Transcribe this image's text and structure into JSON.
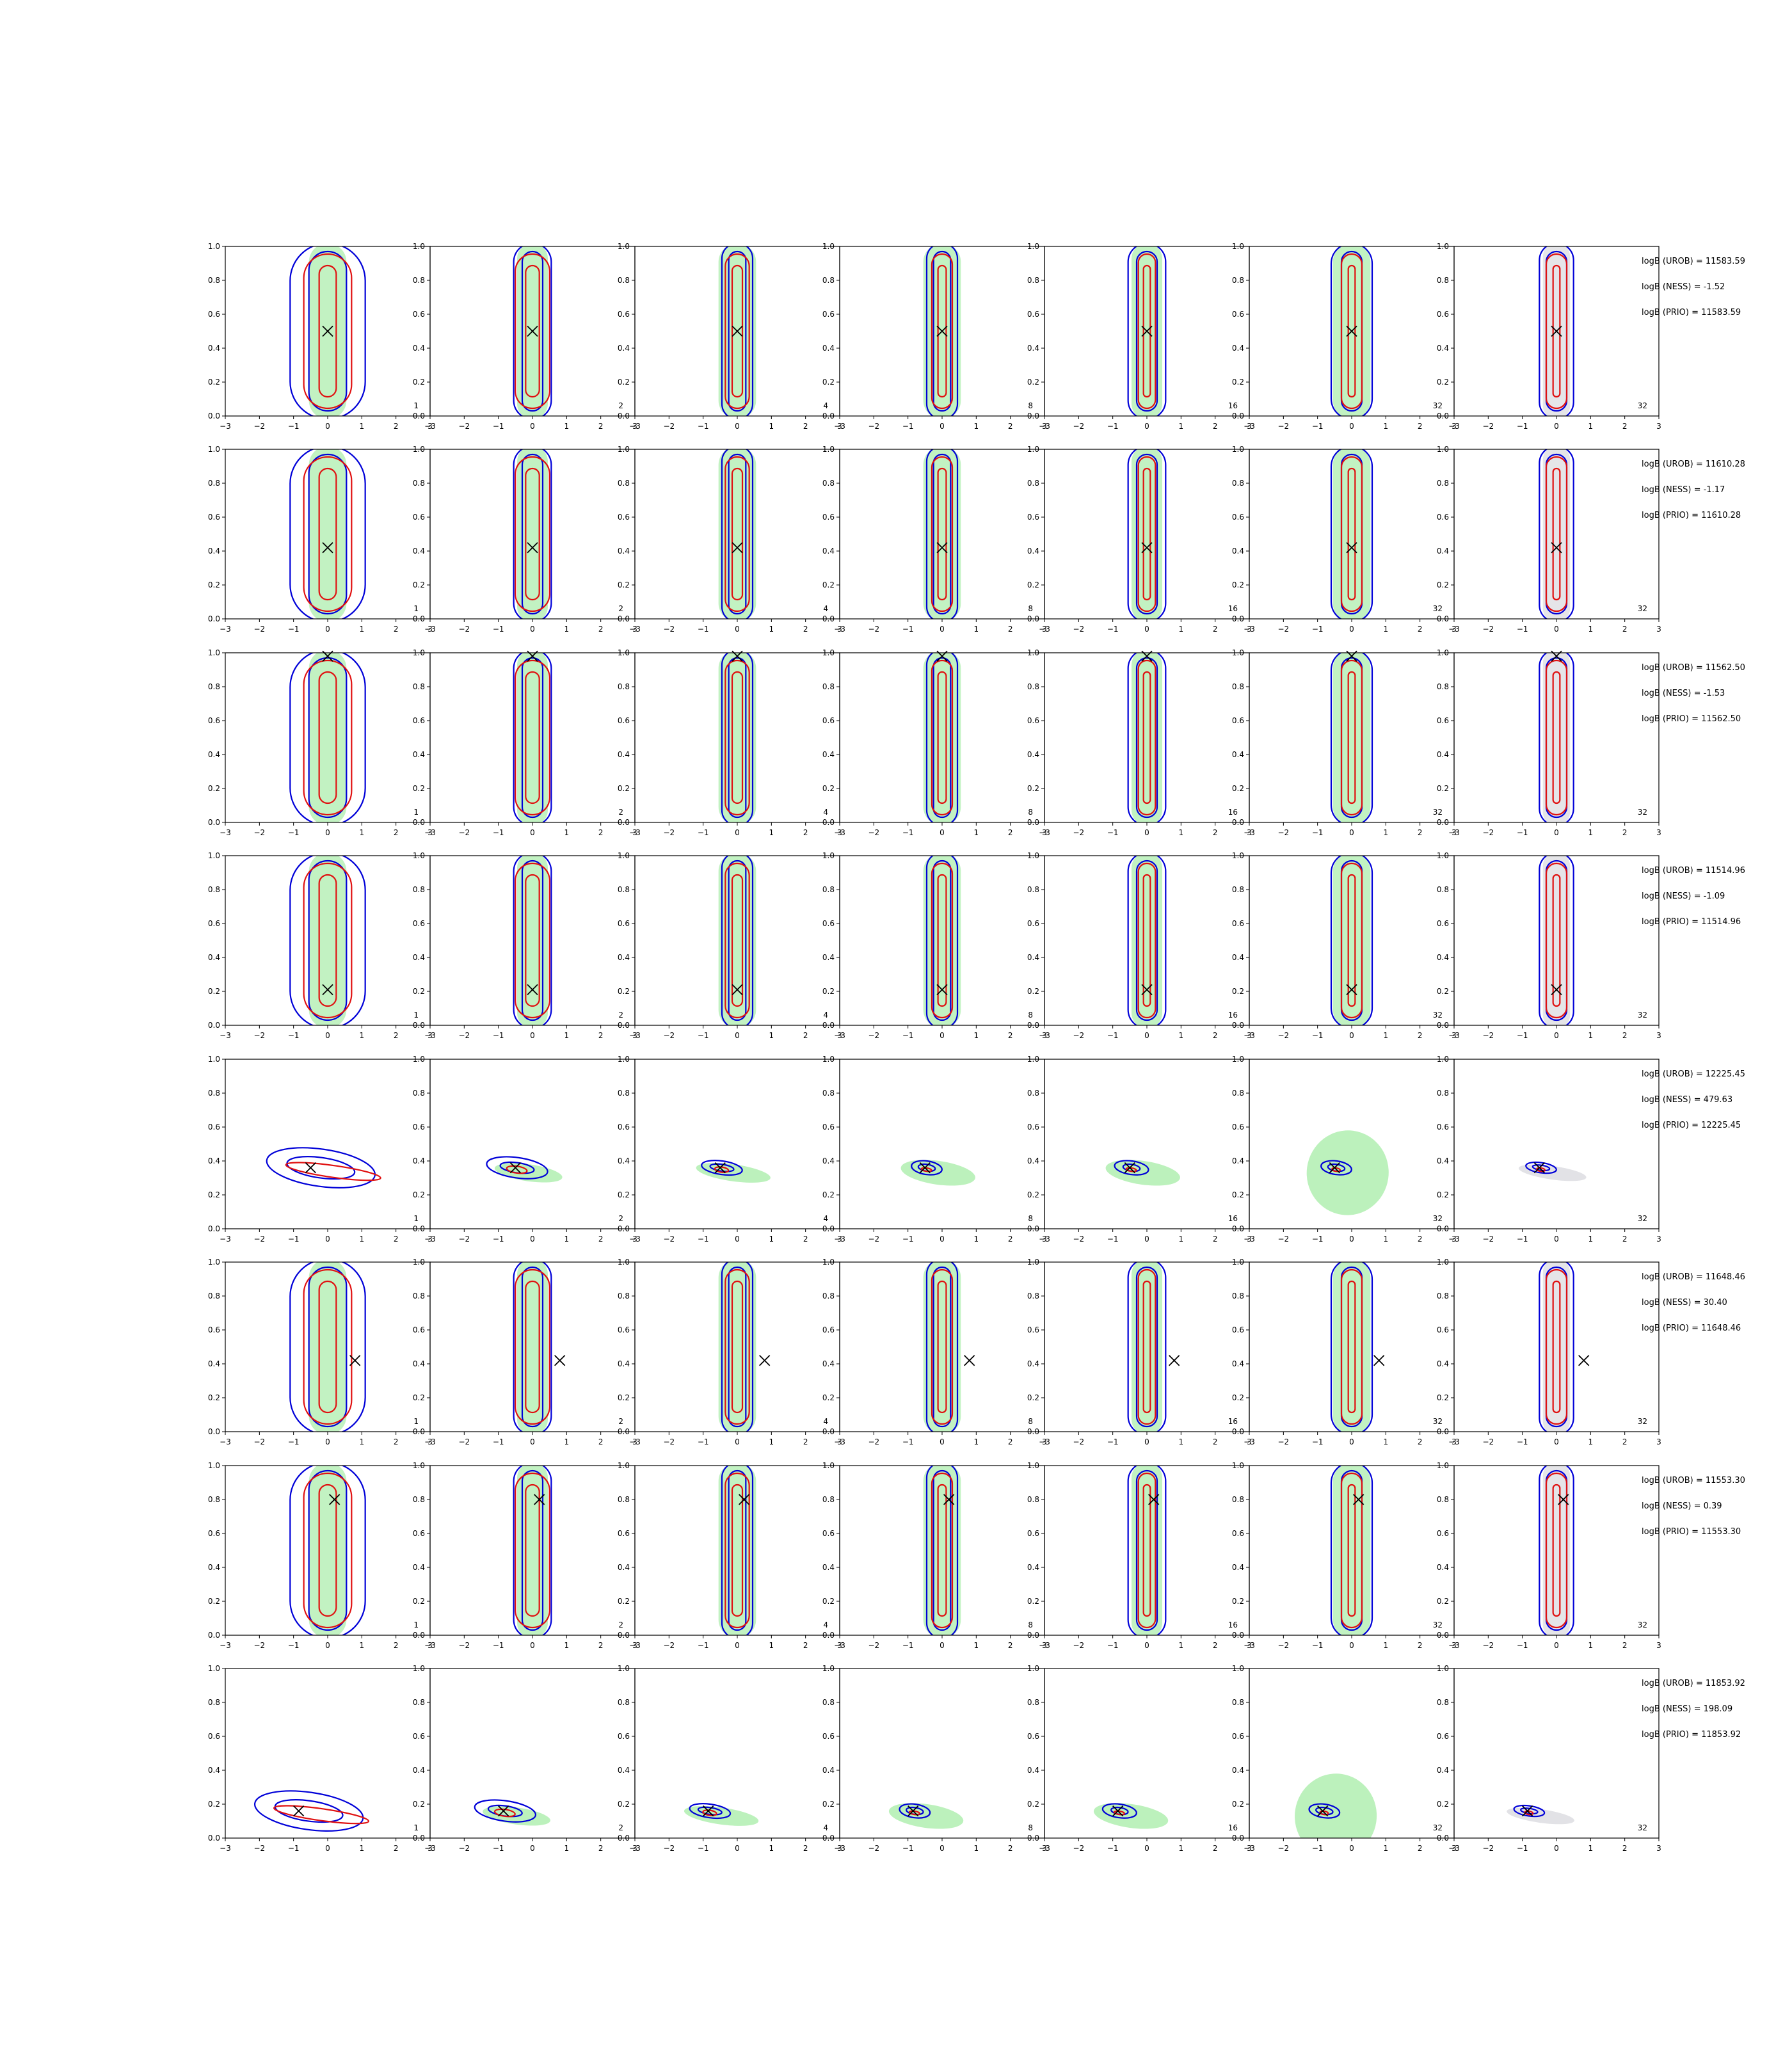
{
  "chart_data": {
    "type": "contour-grid",
    "rows": 8,
    "columns": 7,
    "xlim": [
      -3,
      3
    ],
    "ylim": [
      0.0,
      1.0
    ],
    "x_ticks": [
      "−3",
      "−2",
      "−1",
      "0",
      "1",
      "2",
      "3"
    ],
    "y_ticks": [
      "0.0",
      "0.2",
      "0.4",
      "0.6",
      "0.8",
      "1.0"
    ],
    "column_labels": [
      "1",
      "2",
      "4",
      "8",
      "16",
      "32",
      "32"
    ],
    "colors": {
      "fill_green": "#90e890",
      "fill_grey": "#cfcfd6",
      "blue": "#0000d8",
      "red": "#e01010",
      "marker": "#000000"
    },
    "rows_data": [
      {
        "marker": [
          0.0,
          0.5
        ],
        "type": "vert",
        "stats": [
          "logB (UROB) = 11583.59",
          "logB (NESS) = -1.52",
          "logB (PRIO) = 11583.59"
        ]
      },
      {
        "marker": [
          0.0,
          0.42
        ],
        "type": "vert",
        "stats": [
          "logB (UROB) = 11610.28",
          "logB (NESS) = -1.17",
          "logB (PRIO) = 11610.28"
        ]
      },
      {
        "marker": [
          0.0,
          0.98
        ],
        "type": "vert",
        "stats": [
          "logB (UROB) = 11562.50",
          "logB (NESS) = -1.53",
          "logB (PRIO) = 11562.50"
        ]
      },
      {
        "marker": [
          0.0,
          0.21
        ],
        "type": "vert",
        "stats": [
          "logB (UROB) = 11514.96",
          "logB (NESS) = -1.09",
          "logB (PRIO) = 11514.96"
        ]
      },
      {
        "marker": [
          -0.5,
          0.36
        ],
        "type": "horiz",
        "stats": [
          "logB (UROB) = 12225.45",
          "logB (NESS) = 479.63",
          "logB (PRIO) = 12225.45"
        ]
      },
      {
        "marker": [
          0.8,
          0.42
        ],
        "type": "vert",
        "stats": [
          "logB (UROB) = 11648.46",
          "logB (NESS) = 30.40",
          "logB (PRIO) = 11648.46"
        ]
      },
      {
        "marker": [
          0.2,
          0.8
        ],
        "type": "vert",
        "stats": [
          "logB (UROB) = 11553.30",
          "logB (NESS) = 0.39",
          "logB (PRIO) = 11553.30"
        ]
      },
      {
        "marker": [
          -0.85,
          0.16
        ],
        "type": "horiz",
        "stats": [
          "logB (UROB) = 11853.92",
          "logB (NESS) = 198.09",
          "logB (PRIO) = 11853.92"
        ]
      }
    ]
  }
}
